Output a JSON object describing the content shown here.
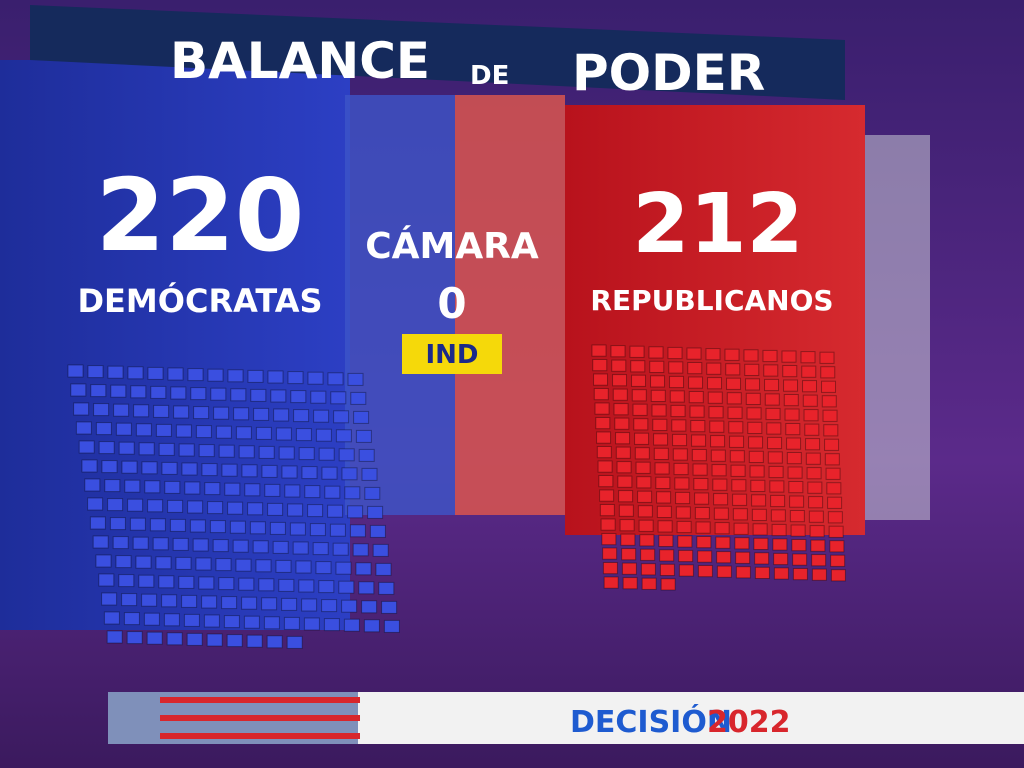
{
  "header": {
    "title_start": "BALANCE",
    "title_small": "DE",
    "title_end": "PODER"
  },
  "chamber": "CÁMARA",
  "parties": [
    {
      "name": "DEMÓCRATAS",
      "seats": 220,
      "color": "#3a4fe0"
    },
    {
      "name": "REPUBLICANOS",
      "seats": 212,
      "color": "#e8232b"
    }
  ],
  "independent": {
    "seats": 0,
    "label": "IND"
  },
  "footer": {
    "brand": "DECISIÓN",
    "year": "2022"
  }
}
